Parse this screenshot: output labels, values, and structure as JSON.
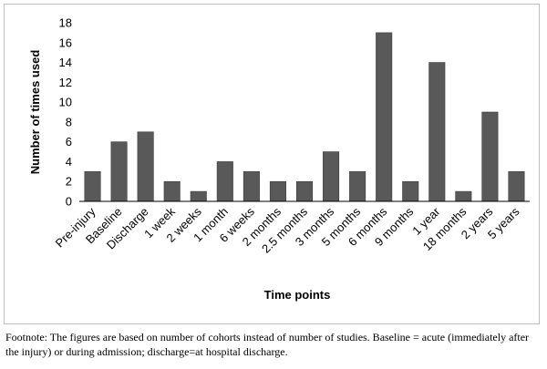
{
  "chart_data": {
    "type": "bar",
    "title": "",
    "xlabel": "Time points",
    "ylabel": "Number of times used",
    "ylim": [
      0,
      18
    ],
    "yticks": [
      0,
      2,
      4,
      6,
      8,
      10,
      12,
      14,
      16,
      18
    ],
    "grid": false,
    "legend": "none",
    "bar_color": "#595959",
    "categories": [
      "Pre-injury",
      "Baseline",
      "Discharge",
      "1 week",
      "2 weeks",
      "1 month",
      "6 weeks",
      "2 months",
      "2.5 months",
      "3 months",
      "5 months",
      "6 months",
      "9 months",
      "1 year",
      "18 months",
      "2 years",
      "5 years"
    ],
    "values": [
      3,
      6,
      7,
      2,
      1,
      4,
      3,
      2,
      2,
      5,
      3,
      17,
      2,
      14,
      1,
      9,
      3
    ]
  },
  "footnote": "Footnote: The figures are based on number of cohorts instead of number of studies. Baseline = acute (immediately after the injury) or during admission; discharge=at hospital discharge."
}
